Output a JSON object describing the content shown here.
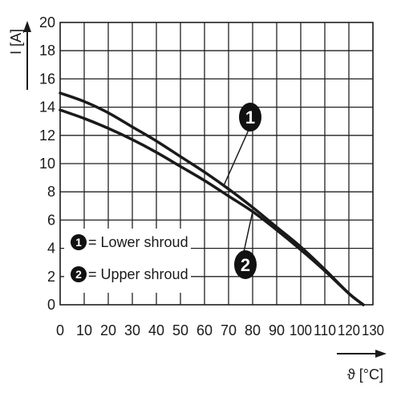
{
  "chart_data": {
    "type": "line",
    "xlabel": "ϑ [°C]",
    "ylabel": "I [A]",
    "xlim": [
      0,
      130
    ],
    "ylim": [
      0,
      20
    ],
    "x_ticks": [
      "0",
      "10",
      "20",
      "30",
      "40",
      "50",
      "60",
      "70",
      "80",
      "90",
      "100",
      "110",
      "120",
      "130"
    ],
    "y_ticks": [
      "0",
      "2",
      "4",
      "6",
      "8",
      "10",
      "12",
      "14",
      "16",
      "18",
      "20"
    ],
    "grid": true,
    "legend_position": "bottom-left",
    "series": [
      {
        "name": "Lower shroud",
        "badge": "1",
        "x": [
          0,
          10,
          20,
          30,
          40,
          50,
          60,
          70,
          80,
          90,
          100,
          110,
          120,
          126
        ],
        "y": [
          15.0,
          14.4,
          13.6,
          12.6,
          11.6,
          10.5,
          9.4,
          8.2,
          6.9,
          5.5,
          4.1,
          2.5,
          0.8,
          0
        ]
      },
      {
        "name": "Upper shroud",
        "badge": "2",
        "x": [
          0,
          10,
          20,
          30,
          40,
          50,
          60,
          70,
          80,
          90,
          100,
          110,
          120,
          126
        ],
        "y": [
          13.8,
          13.2,
          12.5,
          11.7,
          10.8,
          9.8,
          8.8,
          7.7,
          6.6,
          5.3,
          3.9,
          2.4,
          0.8,
          0
        ]
      }
    ],
    "legend": [
      {
        "badge": "1",
        "label": "= Lower shroud"
      },
      {
        "badge": "2",
        "label": "= Upper shroud"
      }
    ],
    "callouts": [
      {
        "badge": "1",
        "series": 0,
        "at_x": 68
      },
      {
        "badge": "2",
        "series": 1,
        "at_x": 80
      }
    ],
    "colors": {
      "line": "#1a1a1a",
      "grid": "#222222",
      "badge": "#111111",
      "background": "#ffffff"
    }
  }
}
